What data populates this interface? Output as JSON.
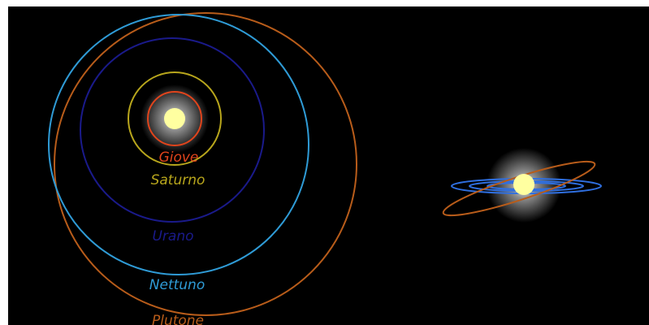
{
  "diagram": {
    "background": "#000000",
    "border_color": "#ffffff",
    "sun": {
      "core_color": "#ffffa0",
      "glow_color": "#ffffff"
    },
    "orbits": [
      {
        "id": "giove",
        "name": "Giove",
        "color": "#e0441c"
      },
      {
        "id": "saturno",
        "name": "Saturno",
        "color": "#b8a61c"
      },
      {
        "id": "urano",
        "name": "Urano",
        "color": "#1a1a8a"
      },
      {
        "id": "nettuno",
        "name": "Nettuno",
        "color": "#2f9bd6"
      },
      {
        "id": "plutone",
        "name": "Plutone",
        "color": "#b85c1a"
      }
    ],
    "side_view": {
      "plane_color": "#2f6fe0",
      "pluto_orbit_color": "#b85c1a"
    }
  }
}
